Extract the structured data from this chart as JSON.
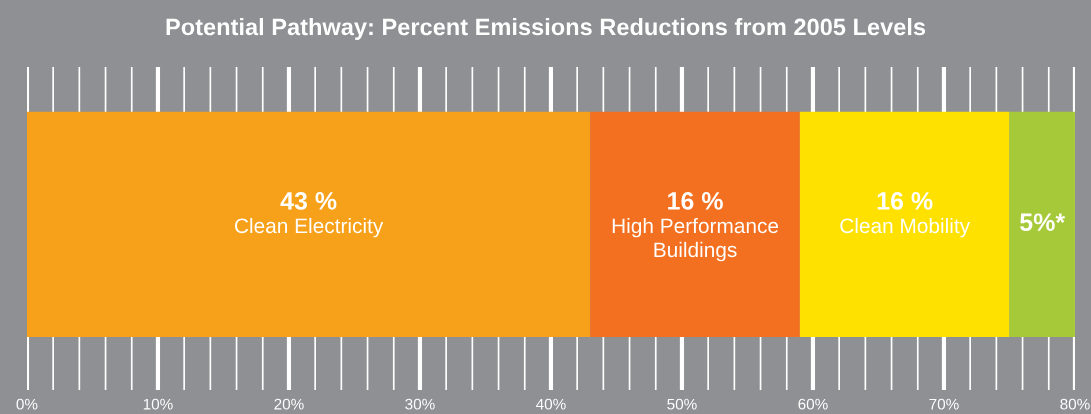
{
  "chart_data": {
    "type": "bar",
    "orientation": "horizontal",
    "stacked": true,
    "title": "Potential Pathway: Percent Emissions Reductions from 2005 Levels",
    "categories": [
      null
    ],
    "series": [
      {
        "name": "Clean Electricity",
        "color": "#f7a11a",
        "values": [
          43
        ],
        "value_labels": [
          "43 %"
        ]
      },
      {
        "name": "High Performance Buildings",
        "color": "#f37021",
        "values": [
          16
        ],
        "value_labels": [
          "16 %"
        ]
      },
      {
        "name": "Clean Mobility",
        "color": "#ffe100",
        "values": [
          16
        ],
        "value_labels": [
          "16 %"
        ]
      },
      {
        "color": "#a6c93a",
        "values": [
          5
        ],
        "value_labels": [
          "5%*"
        ]
      }
    ],
    "xlim": [
      0,
      80
    ],
    "xticks": [
      {
        "value": 0,
        "label": "0%"
      },
      {
        "value": 2,
        "label": null
      },
      {
        "value": 4,
        "label": null
      },
      {
        "value": 6,
        "label": null
      },
      {
        "value": 8,
        "label": null
      },
      {
        "value": 10,
        "label": "10%"
      },
      {
        "value": 12,
        "label": null
      },
      {
        "value": 14,
        "label": null
      },
      {
        "value": 16,
        "label": null
      },
      {
        "value": 18,
        "label": null
      },
      {
        "value": 20,
        "label": "20%"
      },
      {
        "value": 22,
        "label": null
      },
      {
        "value": 24,
        "label": null
      },
      {
        "value": 26,
        "label": null
      },
      {
        "value": 28,
        "label": null
      },
      {
        "value": 30,
        "label": "30%"
      },
      {
        "value": 32,
        "label": null
      },
      {
        "value": 34,
        "label": null
      },
      {
        "value": 36,
        "label": null
      },
      {
        "value": 38,
        "label": null
      },
      {
        "value": 40,
        "label": "40%"
      },
      {
        "value": 42,
        "label": null
      },
      {
        "value": 44,
        "label": null
      },
      {
        "value": 46,
        "label": null
      },
      {
        "value": 48,
        "label": null
      },
      {
        "value": 50,
        "label": "50%"
      },
      {
        "value": 52,
        "label": null
      },
      {
        "value": 54,
        "label": null
      },
      {
        "value": 56,
        "label": null
      },
      {
        "value": 58,
        "label": null
      },
      {
        "value": 60,
        "label": "60%"
      },
      {
        "value": 62,
        "label": null
      },
      {
        "value": 64,
        "label": null
      },
      {
        "value": 66,
        "label": null
      },
      {
        "value": 68,
        "label": null
      },
      {
        "value": 70,
        "label": "70%"
      },
      {
        "value": 72,
        "label": null
      },
      {
        "value": 74,
        "label": null
      },
      {
        "value": 76,
        "label": null
      },
      {
        "value": 78,
        "label": null
      },
      {
        "value": 80,
        "label": "80%"
      }
    ],
    "grid": "x",
    "legend": false
  }
}
